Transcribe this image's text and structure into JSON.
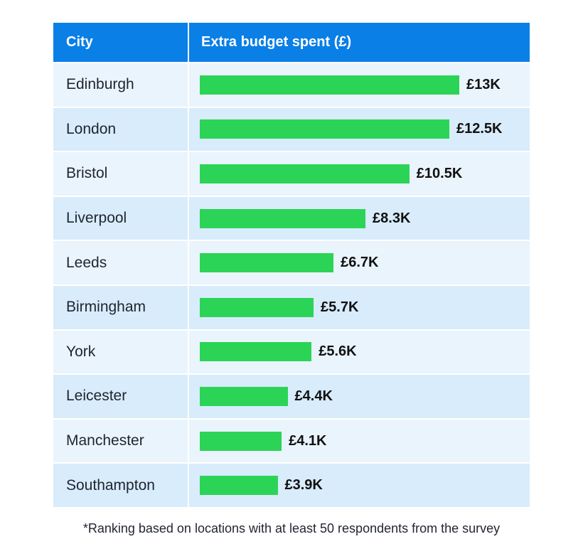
{
  "header": {
    "city": "City",
    "value": "Extra budget spent (£)"
  },
  "chart_data": {
    "type": "bar",
    "orientation": "horizontal",
    "categories": [
      "Edinburgh",
      "London",
      "Bristol",
      "Liverpool",
      "Leeds",
      "Birmingham",
      "York",
      "Leicester",
      "Manchester",
      "Southampton"
    ],
    "values": [
      13000,
      12500,
      10500,
      8300,
      6700,
      5700,
      5600,
      4400,
      4100,
      3900
    ],
    "labels": [
      "£13K",
      "£12.5K",
      "£10.5K",
      "£8.3K",
      "£6.7K",
      "£5.7K",
      "£5.6K",
      "£4.4K",
      "£4.1K",
      "£3.9K"
    ],
    "xlim": [
      0,
      13000
    ],
    "colors": {
      "bar": "#2bd456",
      "header": "#0a7fe6",
      "row_odd": "#eaf4fd",
      "row_even": "#d8ecfb"
    }
  },
  "footnote": "*Ranking based on locations with at least 50 respondents from the survey"
}
